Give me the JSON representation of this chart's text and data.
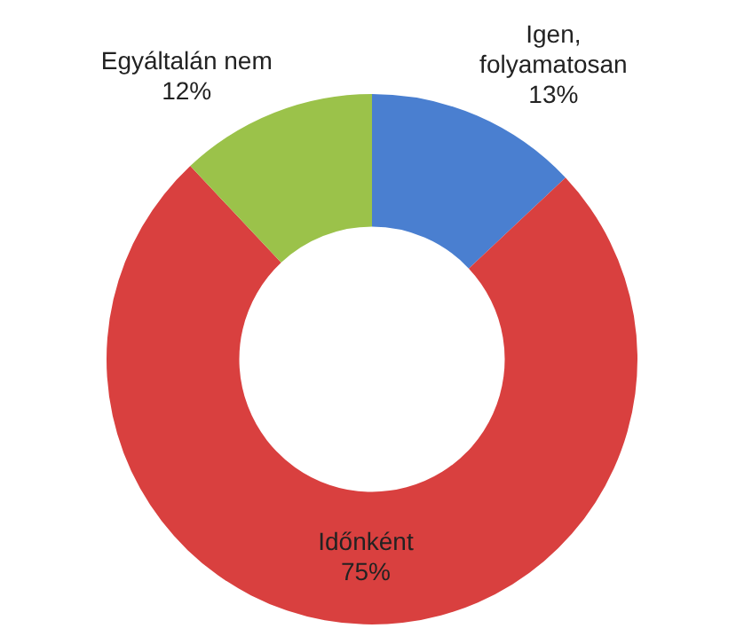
{
  "chart_data": {
    "type": "donut",
    "categories": [
      "Igen, folyamatosan",
      "Időnként",
      "Egyáltalán nem"
    ],
    "values": [
      13,
      75,
      12
    ],
    "colors": [
      "#4a7fd0",
      "#d9403f",
      "#9bc24a"
    ],
    "value_labels": [
      "13%",
      "75%",
      "12%"
    ],
    "legend": false
  }
}
